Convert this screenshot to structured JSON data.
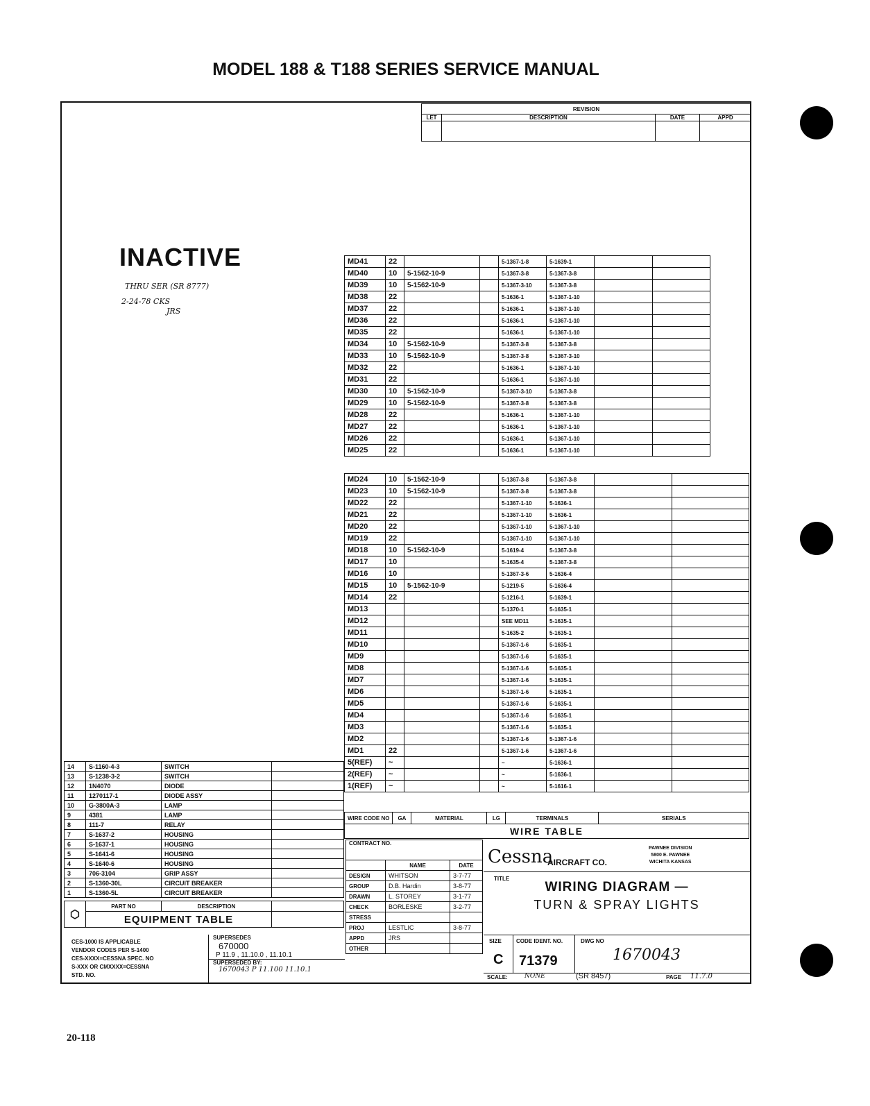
{
  "header": {
    "title": "MODEL 188 & T188 SERIES SERVICE MANUAL"
  },
  "footer": {
    "page_number": "20-118"
  },
  "stamp": {
    "inactive": "INACTIVE",
    "note1": "THRU SER (SR 8777)",
    "note2": "2-24-78 CKS",
    "note3": "JRS"
  },
  "revision": {
    "title": "REVISION",
    "cols": [
      "LET",
      "DESCRIPTION",
      "DATE",
      "APPD"
    ]
  },
  "wire_table": {
    "title": "WIRE TABLE",
    "headers": [
      "WIRE CODE NO",
      "GA",
      "MATERIAL",
      "LG",
      "TERMINALS",
      "SERIALS"
    ],
    "upper_rows": [
      [
        "MD41",
        "22",
        "",
        "5-1367-1-8",
        "5-1639-1"
      ],
      [
        "MD40",
        "10",
        "5-1562-10-9",
        "5-1367-3-8",
        "5-1367-3-8"
      ],
      [
        "MD39",
        "10",
        "5-1562-10-9",
        "5-1367-3-10",
        "5-1367-3-8"
      ],
      [
        "MD38",
        "22",
        "",
        "5-1636-1",
        "5-1367-1-10"
      ],
      [
        "MD37",
        "22",
        "",
        "5-1636-1",
        "5-1367-1-10"
      ],
      [
        "MD36",
        "22",
        "",
        "5-1636-1",
        "5-1367-1-10"
      ],
      [
        "MD35",
        "22",
        "",
        "5-1636-1",
        "5-1367-1-10"
      ],
      [
        "MD34",
        "10",
        "5-1562-10-9",
        "5-1367-3-8",
        "5-1367-3-8"
      ],
      [
        "MD33",
        "10",
        "5-1562-10-9",
        "5-1367-3-8",
        "5-1367-3-10"
      ],
      [
        "MD32",
        "22",
        "",
        "5-1636-1",
        "5-1367-1-10"
      ],
      [
        "MD31",
        "22",
        "",
        "5-1636-1",
        "5-1367-1-10"
      ],
      [
        "MD30",
        "10",
        "5-1562-10-9",
        "5-1367-3-10",
        "5-1367-3-8"
      ],
      [
        "MD29",
        "10",
        "5-1562-10-9",
        "5-1367-3-8",
        "5-1367-3-8"
      ],
      [
        "MD28",
        "22",
        "",
        "5-1636-1",
        "5-1367-1-10"
      ],
      [
        "MD27",
        "22",
        "",
        "5-1636-1",
        "5-1367-1-10"
      ],
      [
        "MD26",
        "22",
        "",
        "5-1636-1",
        "5-1367-1-10"
      ],
      [
        "MD25",
        "22",
        "",
        "5-1636-1",
        "5-1367-1-10"
      ]
    ],
    "lower_rows": [
      [
        "MD24",
        "10",
        "5-1562-10-9",
        "5-1367-3-8",
        "5-1367-3-8"
      ],
      [
        "MD23",
        "10",
        "5-1562-10-9",
        "5-1367-3-8",
        "5-1367-3-8"
      ],
      [
        "MD22",
        "22",
        "",
        "5-1367-1-10",
        "5-1636-1"
      ],
      [
        "MD21",
        "22",
        "",
        "5-1367-1-10",
        "5-1636-1"
      ],
      [
        "MD20",
        "22",
        "",
        "5-1367-1-10",
        "5-1367-1-10"
      ],
      [
        "MD19",
        "22",
        "",
        "5-1367-1-10",
        "5-1367-1-10"
      ],
      [
        "MD18",
        "10",
        "5-1562-10-9",
        "5-1619-4",
        "5-1367-3-8"
      ],
      [
        "MD17",
        "10",
        "",
        "5-1635-4",
        "5-1367-3-8"
      ],
      [
        "MD16",
        "10",
        "",
        "5-1367-3-6",
        "5-1636-4"
      ],
      [
        "MD15",
        "10",
        "5-1562-10-9",
        "5-1219-5",
        "5-1636-4"
      ],
      [
        "MD14",
        "22",
        "",
        "5-1216-1",
        "5-1639-1"
      ],
      [
        "MD13",
        "",
        "",
        "5-1370-1",
        "5-1635-1"
      ],
      [
        "MD12",
        "",
        "",
        "SEE MD11",
        "5-1635-1"
      ],
      [
        "MD11",
        "",
        "",
        "5-1635-2",
        "5-1635-1"
      ],
      [
        "MD10",
        "",
        "",
        "5-1367-1-6",
        "5-1635-1"
      ],
      [
        "MD9",
        "",
        "",
        "5-1367-1-6",
        "5-1635-1"
      ],
      [
        "MD8",
        "",
        "",
        "5-1367-1-6",
        "5-1635-1"
      ],
      [
        "MD7",
        "",
        "",
        "5-1367-1-6",
        "5-1635-1"
      ],
      [
        "MD6",
        "",
        "",
        "5-1367-1-6",
        "5-1635-1"
      ],
      [
        "MD5",
        "",
        "",
        "5-1367-1-6",
        "5-1635-1"
      ],
      [
        "MD4",
        "",
        "",
        "5-1367-1-6",
        "5-1635-1"
      ],
      [
        "MD3",
        "",
        "",
        "5-1367-1-6",
        "5-1635-1"
      ],
      [
        "MD2",
        "",
        "",
        "5-1367-1-6",
        "5-1367-1-6"
      ],
      [
        "MD1",
        "22",
        "",
        "5-1367-1-6",
        "5-1367-1-6"
      ],
      [
        "5(REF)",
        "~",
        "",
        "~",
        "5-1636-1"
      ],
      [
        "2(REF)",
        "~",
        "",
        "~",
        "5-1636-1"
      ],
      [
        "1(REF)",
        "~",
        "",
        "~",
        "5-1616-1"
      ]
    ]
  },
  "equipment_table": {
    "title": "EQUIPMENT TABLE",
    "headers": [
      "PART NO",
      "DESCRIPTION"
    ],
    "rows": [
      [
        "14",
        "S-1160-4-3",
        "SWITCH"
      ],
      [
        "13",
        "S-1238-3-2",
        "SWITCH"
      ],
      [
        "12",
        "1N4070",
        "DIODE"
      ],
      [
        "11",
        "1270117-1",
        "DIODE ASSY"
      ],
      [
        "10",
        "G-3800A-3",
        "LAMP"
      ],
      [
        "9",
        "4381",
        "LAMP"
      ],
      [
        "8",
        "111-7",
        "RELAY"
      ],
      [
        "7",
        "S-1637-2",
        "HOUSING"
      ],
      [
        "6",
        "S-1637-1",
        "HOUSING"
      ],
      [
        "5",
        "S-1641-6",
        "HOUSING"
      ],
      [
        "4",
        "S-1640-6",
        "HOUSING"
      ],
      [
        "3",
        "706-3104",
        "GRIP ASSY"
      ],
      [
        "2",
        "S-1360-30L",
        "CIRCUIT BREAKER"
      ],
      [
        "1",
        "S-1360-5L",
        "CIRCUIT BREAKER"
      ]
    ]
  },
  "notes": {
    "lines": [
      "CES-1000 IS APPLICABLE",
      "VENDOR CODES PER S-1400",
      "CES-XXXX=CESSNA SPEC. NO",
      "S-XXX OR CMXXXX=CESSNA",
      "STD. NO."
    ],
    "supersedes_label": "SUPERSEDES",
    "supersedes_value": "670000",
    "supersedes_pages": "P 11.9 , 11.10.0 , 11.10.1",
    "superseded_by_label": "SUPERSEDED BY:",
    "superseded_by_value": "1670043  P 11.100  11.10.1"
  },
  "title_block": {
    "contract_label": "CONTRACT NO.",
    "name_label": "NAME",
    "date_label": "DATE",
    "people": [
      [
        "DESIGN",
        "WHITSON",
        "3-7-77"
      ],
      [
        "GROUP",
        "D.B. Hardin",
        "3-8-77"
      ],
      [
        "DRAWN",
        "L. STOREY",
        "3-1-77"
      ],
      [
        "CHECK",
        "BORLESKE",
        "3-2-77"
      ],
      [
        "STRESS",
        "",
        ""
      ],
      [
        "PROJ",
        "LESTLIC",
        "3-8-77"
      ],
      [
        "APPD",
        "JRS",
        ""
      ],
      [
        "OTHER",
        "",
        ""
      ]
    ],
    "company": "Cessna",
    "company_suffix": "AIRCRAFT CO.",
    "division": [
      "PAWNEE DIVISION",
      "5800 E. PAWNEE",
      "WICHITA KANSAS"
    ],
    "title_label": "TITLE",
    "drawing_title": "WIRING DIAGRAM —",
    "drawing_subtitle": "TURN & SPRAY LIGHTS",
    "size_label": "SIZE",
    "size": "C",
    "code_label": "CODE IDENT. NO.",
    "code": "71379",
    "dwg_label": "DWG NO",
    "dwg_no": "1670043",
    "scale_label": "SCALE:",
    "scale": "NONE",
    "serial_ref": "(SR 8457)",
    "page_label": "PAGE",
    "page": "11.7.0"
  }
}
